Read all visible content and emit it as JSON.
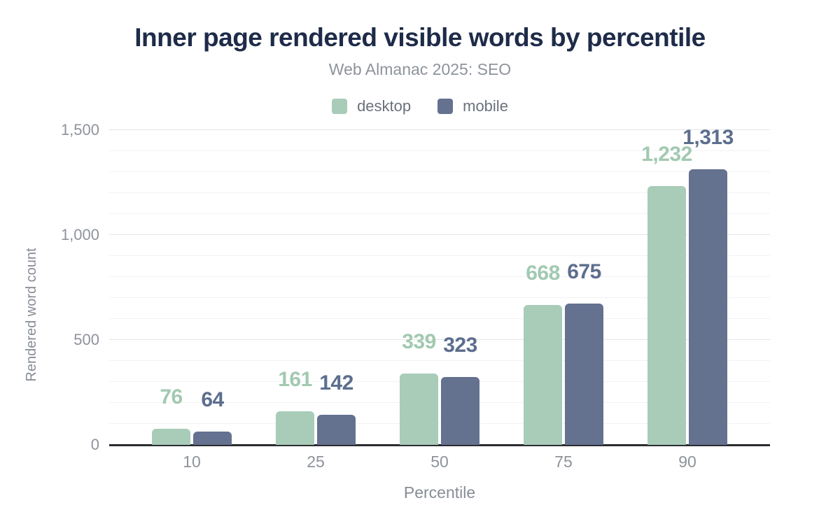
{
  "header": {
    "title": "Inner page rendered visible words by percentile",
    "subtitle": "Web Almanac 2025: SEO"
  },
  "chart_data": {
    "type": "bar",
    "categories": [
      "10",
      "25",
      "50",
      "75",
      "90"
    ],
    "series": [
      {
        "name": "desktop",
        "color": "#a8ccb8",
        "label_color": "#a2c9b1",
        "values": [
          76,
          161,
          339,
          668,
          1232
        ]
      },
      {
        "name": "mobile",
        "color": "#64718f",
        "label_color": "#5c6e8e",
        "values": [
          64,
          142,
          323,
          675,
          1313
        ]
      }
    ],
    "title": "Inner page rendered visible words by percentile",
    "subtitle": "Web Almanac 2025: SEO",
    "xlabel": "Percentile",
    "ylabel": "Rendered word count",
    "ylim": [
      0,
      1500
    ],
    "yticks": [
      0,
      500,
      1000,
      1500
    ],
    "ytick_labels": [
      "0",
      "500",
      "1,000",
      "1,500"
    ],
    "minor_grid_step": 100,
    "grid": "on",
    "legend_position": "top",
    "value_labels": true,
    "number_format": "en-US-comma"
  },
  "colors": {
    "background": "#ffffff",
    "title": "#1e2b49",
    "muted_text": "#8e939b",
    "legend_text": "#6b717c",
    "axis_title": "#878d96",
    "axis_line": "#2b2c30",
    "grid_major": "#e4e5e9",
    "grid_minor": "#f2f2f5"
  }
}
